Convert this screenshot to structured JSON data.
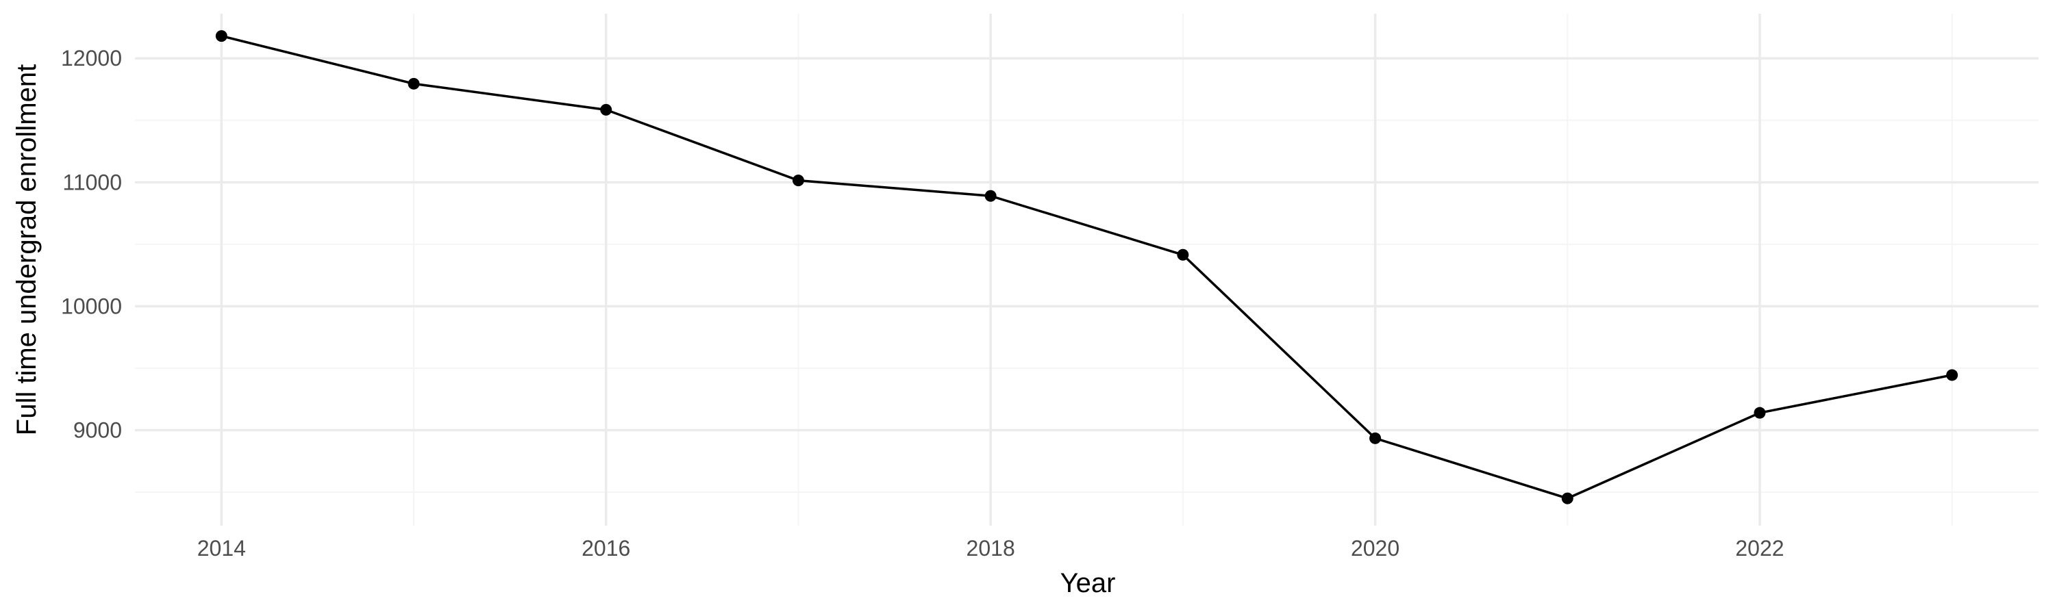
{
  "chart_data": {
    "type": "line",
    "title": "",
    "xlabel": "Year",
    "ylabel": "Full time undergrad enrollment",
    "x": [
      2014,
      2015,
      2016,
      2017,
      2018,
      2019,
      2020,
      2021,
      2022,
      2023
    ],
    "series": [
      {
        "values": [
          12180,
          11795,
          11585,
          11015,
          10890,
          10415,
          8935,
          8450,
          9140,
          9445
        ]
      }
    ],
    "xlim": [
      2013.55,
      2023.45
    ],
    "ylim": [
      8230,
      12360
    ],
    "x_ticks": [
      2014,
      2016,
      2018,
      2020,
      2022
    ],
    "x_minor_ticks": [
      2015,
      2017,
      2019,
      2021,
      2023
    ],
    "y_ticks": [
      9000,
      10000,
      11000,
      12000
    ],
    "y_minor_ticks": [
      8500,
      9500,
      10500,
      11500
    ],
    "x_tick_labels": [
      "2014",
      "2016",
      "2018",
      "2020",
      "2022"
    ],
    "y_tick_labels": [
      "9000",
      "10000",
      "11000",
      "12000"
    ],
    "grid": true,
    "legend": "none",
    "colors": {
      "line": "#000000",
      "grid_major": "#ebebeb",
      "grid_minor": "#f5f5f5",
      "tick_text": "#4d4d4d"
    }
  }
}
